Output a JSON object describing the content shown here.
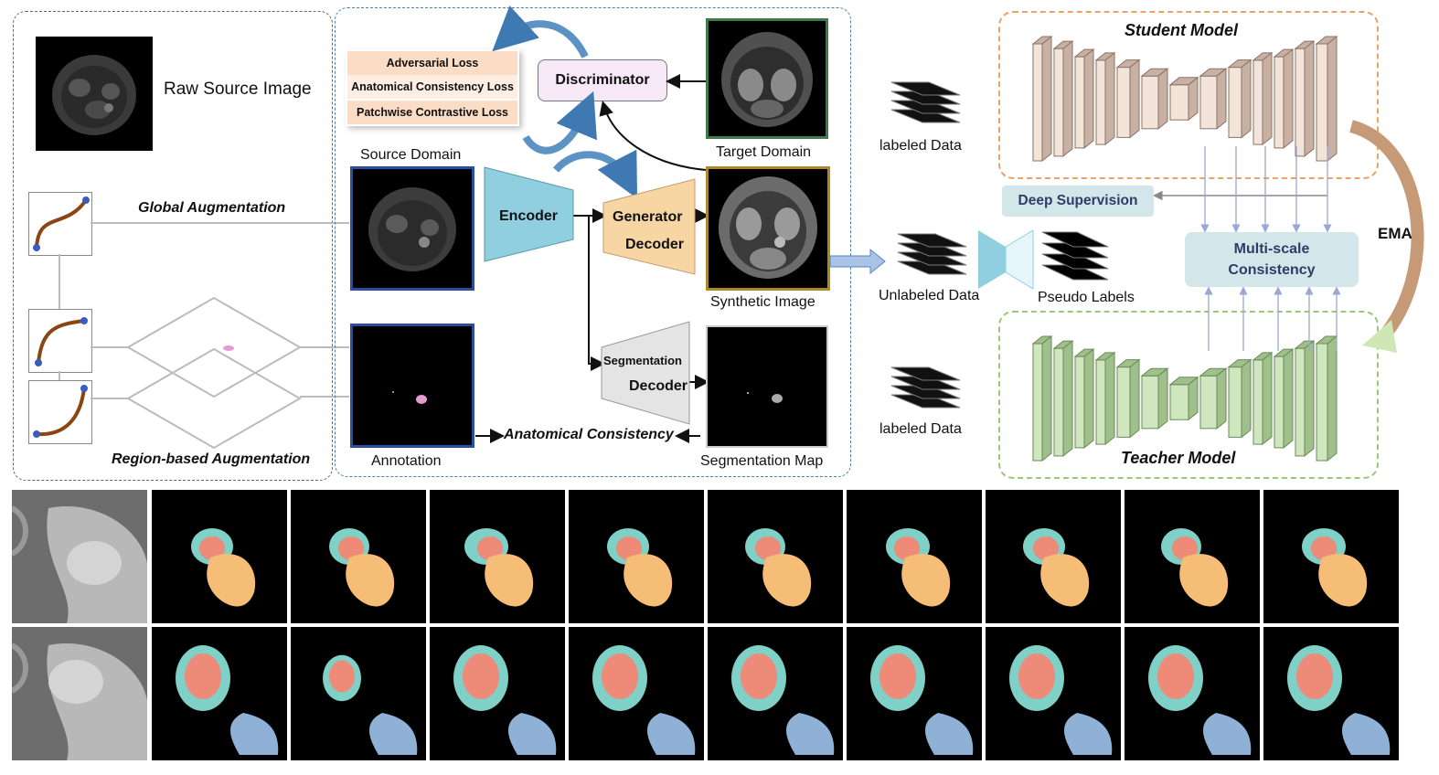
{
  "augmentation": {
    "raw_source_label": "Raw Source Image",
    "global_label": "Global Augmentation",
    "region_label": "Region-based Augmentation"
  },
  "translation": {
    "losses": [
      "Adversarial Loss",
      "Anatomical Consistency Loss",
      "Patchwise Contrastive Loss"
    ],
    "discriminator": "Discriminator",
    "target_domain": "Target Domain",
    "source_domain": "Source Domain",
    "encoder": "Encoder",
    "generator_decoder_line1": "Generator",
    "generator_decoder_line2": "Decoder",
    "segmentation_decoder_line1": "Segmentation",
    "segmentation_decoder_line2": "Decoder",
    "synthetic_image": "Synthetic Image",
    "annotation": "Annotation",
    "anatomical_consistency": "Anatomical Consistency",
    "segmentation_map": "Segmentation Map"
  },
  "semi_supervised": {
    "labeled_data_top": "labeled Data",
    "unlabeled_data": "Unlabeled Data",
    "pseudo_labels": "Pseudo Labels",
    "labeled_data_bottom": "labeled Data",
    "student_model": "Student Model",
    "teacher_model": "Teacher Model",
    "deep_supervision": "Deep Supervision",
    "multi_scale_line1": "Multi-scale",
    "multi_scale_line2": "Consistency",
    "ema": "EMA"
  },
  "colors": {
    "student_block": "#eedcd0",
    "teacher_block": "#cde4bb",
    "encoder": "#8fcfe0",
    "generator": "#f8d6a4",
    "seg_decoder": "#e4e4e4",
    "deep_supervision_bg": "#d3e6ea",
    "multiscale_bg": "#d3e6ea",
    "seg_teal": "#7fd0c6",
    "seg_red": "#ee8a78",
    "seg_orange": "#f6bd77",
    "seg_blue": "#8fb1d6"
  }
}
